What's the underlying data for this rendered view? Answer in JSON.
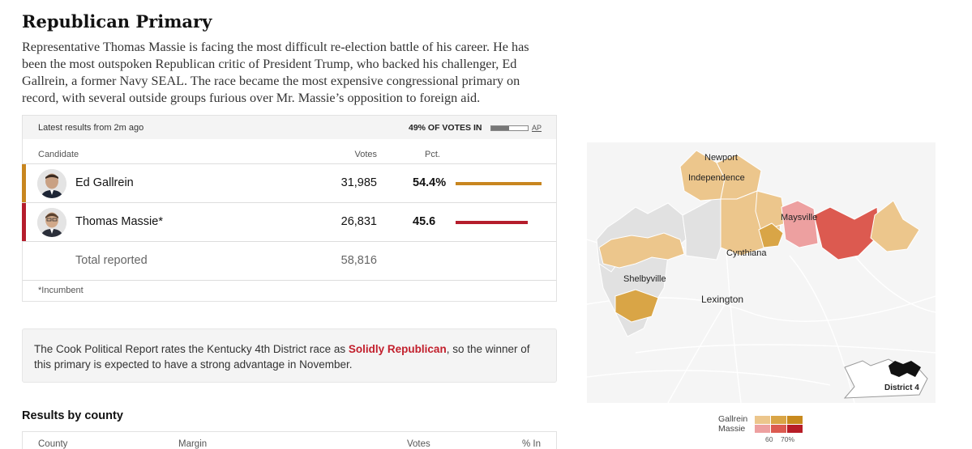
{
  "header": {
    "title": "Republican Primary",
    "intro": "Representative Thomas Massie is facing the most difficult re-election battle of his career. He has been the most outspoken Republican critic of President Trump, who backed his challenger, Ed Gallrein, a former Navy SEAL. The race became the most expensive congressional primary on record, with several outside groups furious over Mr. Massie’s opposition to foreign aid."
  },
  "results": {
    "latest": "Latest results from 2m ago",
    "votes_in": "49% OF VOTES IN",
    "votes_in_fraction": 0.49,
    "source": "AP",
    "col_candidate": "Candidate",
    "col_votes": "Votes",
    "col_pct": "Pct.",
    "candidates": [
      {
        "name": "Ed Gallrein",
        "votes": "31,985",
        "pct": "54.4%",
        "pct_value": 54.4,
        "color": "#c8861f"
      },
      {
        "name": "Thomas Massie*",
        "votes": "26,831",
        "pct": "45.6",
        "pct_value": 45.6,
        "color": "#b51d2c"
      }
    ],
    "total_label": "Total reported",
    "total_votes": "58,816",
    "footnote": "*Incumbent"
  },
  "cook": {
    "before": "The Cook Political Report rates the Kentucky 4th District race as ",
    "rating": "Solidly Republican",
    "after": ", so the winner of this primary is expected to have a strong advantage in November."
  },
  "county": {
    "title": "Results by county",
    "col_county": "County",
    "col_margin": "Margin",
    "col_votes": "Votes",
    "col_pct_in": "% In"
  },
  "map": {
    "labels": {
      "newport": "Newport",
      "independence": "Independence",
      "maysville": "Maysville",
      "cynthiana": "Cynthiana",
      "shelbyville": "Shelbyville",
      "lexington": "Lexington",
      "district": "District 4"
    },
    "colors": {
      "gallrein_light": "#ecc68c",
      "gallrein_mid": "#d9a546",
      "gallrein_dark": "#c88a1e",
      "massie_light": "#eda0a0",
      "massie_mid": "#dc5a50",
      "massie_dark": "#b71d27",
      "no_results": "#e1e1e1"
    }
  },
  "legend": {
    "gallrein": "Gallrein",
    "massie": "Massie",
    "tick_60": "60",
    "tick_70": "70%"
  }
}
